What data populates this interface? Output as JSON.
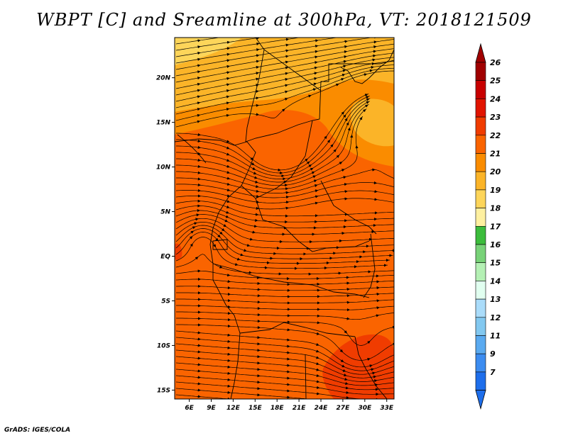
{
  "title": "WBPT [C] and Sreamline at 300hPa, VT: 2018121509",
  "credit": "GrADS: IGES/COLA",
  "map": {
    "lat_labels": [
      "20N",
      "15N",
      "10N",
      "5N",
      "EQ",
      "5S",
      "10S",
      "15S"
    ],
    "lat_values": [
      20,
      15,
      10,
      5,
      0,
      -5,
      -10,
      -15
    ],
    "lon_labels": [
      "6E",
      "9E",
      "12E",
      "15E",
      "18E",
      "21E",
      "24E",
      "27E",
      "30E",
      "33E"
    ],
    "lon_values": [
      6,
      9,
      12,
      15,
      18,
      21,
      24,
      27,
      30,
      33
    ],
    "lon_range": [
      4,
      34
    ],
    "lat_range": [
      -16,
      24.5
    ]
  },
  "colorbar": {
    "labels": [
      "26",
      "25",
      "24",
      "23",
      "22",
      "21",
      "20",
      "19",
      "18",
      "17",
      "16",
      "15",
      "14",
      "13",
      "12",
      "11",
      "9",
      "7"
    ],
    "colors": [
      "#a00000",
      "#c80000",
      "#e11400",
      "#f03c00",
      "#fa6400",
      "#fa8c00",
      "#fbb428",
      "#fdd55a",
      "#fef0a0",
      "#3cbc3c",
      "#78d278",
      "#b4f0b4",
      "#e1fff0",
      "#aadcfa",
      "#82c8f0",
      "#5aaaf0",
      "#3c8cf0",
      "#1e6eeb"
    ],
    "top_arrow_color": "#a00000",
    "bottom_arrow_color": "#1e6eeb"
  },
  "field_colors": {
    "background": "#fa6400",
    "warm_band": "#f03c00",
    "cool_band_21": "#fa8c00",
    "cool_band_20": "#fbb428",
    "cool_band_19": "#fdd55a"
  }
}
